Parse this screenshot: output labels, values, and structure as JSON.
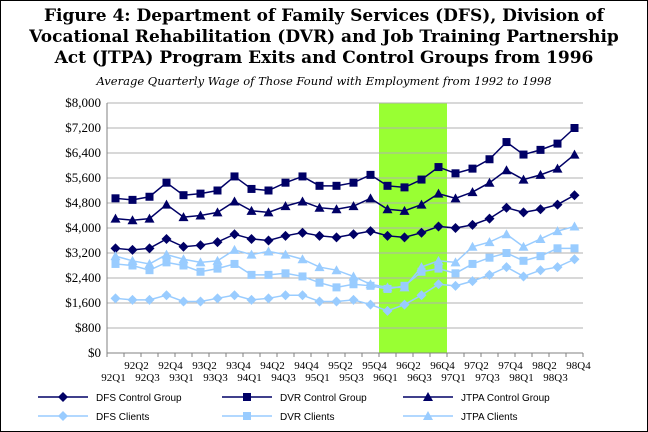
{
  "figure": {
    "title_line1": "Figure 4:  Department of Family Services (DFS), Division of",
    "title_line2": "Vocational Rehabilitation (DVR) and Job Training Partnership",
    "title_line3": "Act (JTPA) Program Exits and Control Groups from 1996",
    "subtitle": "Average Quarterly Wage of Those Found with Employment from 1992 to 1998"
  },
  "chart_data": {
    "type": "line",
    "title": "Figure 4: Department of Family Services (DFS), Division of Vocational Rehabilitation (DVR) and Job Training Partnership Act (JTPA) Program Exits and Control Groups from 1996",
    "subtitle": "Average Quarterly Wage of Those Found with Employment from 1992 to 1998",
    "xlabel": "",
    "ylabel": "",
    "ylim": [
      0,
      8000
    ],
    "y_ticks": [
      "$0",
      "$800",
      "$1,600",
      "$2,400",
      "$3,200",
      "$4,000",
      "$4,800",
      "$5,600",
      "$6,400",
      "$7,200",
      "$8,000"
    ],
    "y_tick_values": [
      0,
      800,
      1600,
      2400,
      3200,
      4000,
      4800,
      5600,
      6400,
      7200,
      8000
    ],
    "grid": true,
    "legend_position": "bottom",
    "highlight": {
      "from": "96Q1",
      "to": "96Q4",
      "color": "#99ff33"
    },
    "categories": [
      "92Q1",
      "92Q2",
      "92Q3",
      "92Q4",
      "93Q1",
      "93Q2",
      "93Q3",
      "93Q4",
      "94Q1",
      "94Q2",
      "94Q3",
      "94Q4",
      "95Q1",
      "95Q2",
      "95Q3",
      "95Q4",
      "96Q1",
      "96Q2",
      "96Q3",
      "96Q4",
      "97Q1",
      "97Q2",
      "97Q3",
      "97Q4",
      "98Q1",
      "98Q2",
      "98Q3",
      "98Q4"
    ],
    "series": [
      {
        "name": "DFS Control Group",
        "marker": "diamond",
        "color": "#000066",
        "values": [
          3350,
          3300,
          3350,
          3650,
          3400,
          3450,
          3550,
          3800,
          3650,
          3600,
          3750,
          3850,
          3750,
          3700,
          3800,
          3900,
          3750,
          3700,
          3850,
          4050,
          4000,
          4100,
          4300,
          4650,
          4500,
          4600,
          4750,
          5050
        ]
      },
      {
        "name": "DVR Control Group",
        "marker": "square",
        "color": "#000066",
        "values": [
          4950,
          4900,
          5000,
          5450,
          5050,
          5100,
          5200,
          5650,
          5250,
          5200,
          5450,
          5650,
          5350,
          5350,
          5450,
          5700,
          5350,
          5300,
          5550,
          5950,
          5750,
          5900,
          6200,
          6750,
          6350,
          6500,
          6700,
          7200
        ]
      },
      {
        "name": "JTPA Control Group",
        "marker": "triangle",
        "color": "#000066",
        "values": [
          4300,
          4250,
          4300,
          4750,
          4350,
          4400,
          4500,
          4850,
          4550,
          4500,
          4700,
          4850,
          4650,
          4600,
          4700,
          4950,
          4600,
          4550,
          4750,
          5100,
          4950,
          5150,
          5450,
          5850,
          5550,
          5700,
          5900,
          6350
        ]
      },
      {
        "name": "DFS Clients",
        "marker": "diamond",
        "color": "#99ccff",
        "values": [
          1750,
          1700,
          1700,
          1850,
          1650,
          1650,
          1750,
          1850,
          1700,
          1750,
          1850,
          1850,
          1650,
          1650,
          1700,
          1550,
          1350,
          1550,
          1850,
          2200,
          2150,
          2300,
          2500,
          2750,
          2450,
          2650,
          2750,
          3000
        ]
      },
      {
        "name": "DVR Clients",
        "marker": "square",
        "color": "#99ccff",
        "values": [
          2850,
          2800,
          2650,
          2900,
          2800,
          2600,
          2700,
          2850,
          2500,
          2500,
          2550,
          2450,
          2250,
          2100,
          2200,
          2150,
          2050,
          2150,
          2600,
          2700,
          2550,
          2850,
          3050,
          3200,
          2950,
          3100,
          3350,
          3350
        ]
      },
      {
        "name": "JTPA Clients",
        "marker": "triangle",
        "color": "#99ccff",
        "values": [
          3100,
          2950,
          2850,
          3150,
          3000,
          2900,
          2950,
          3300,
          3150,
          3250,
          3150,
          3000,
          2750,
          2650,
          2450,
          2200,
          2100,
          2100,
          2750,
          2950,
          2900,
          3400,
          3550,
          3800,
          3400,
          3650,
          3900,
          4050
        ]
      }
    ]
  },
  "x_labels": {
    "upper": [
      "92Q2",
      "92Q4",
      "93Q2",
      "93Q4",
      "94Q2",
      "94Q4",
      "95Q2",
      "95Q4",
      "96Q2",
      "96Q4",
      "97Q2",
      "97Q4",
      "98Q2",
      "98Q4"
    ],
    "lower": [
      "92Q1",
      "92Q3",
      "93Q1",
      "93Q3",
      "94Q1",
      "94Q3",
      "95Q1",
      "95Q3",
      "96Q1",
      "96Q3",
      "97Q1",
      "97Q3",
      "98Q1",
      "98Q3"
    ]
  }
}
